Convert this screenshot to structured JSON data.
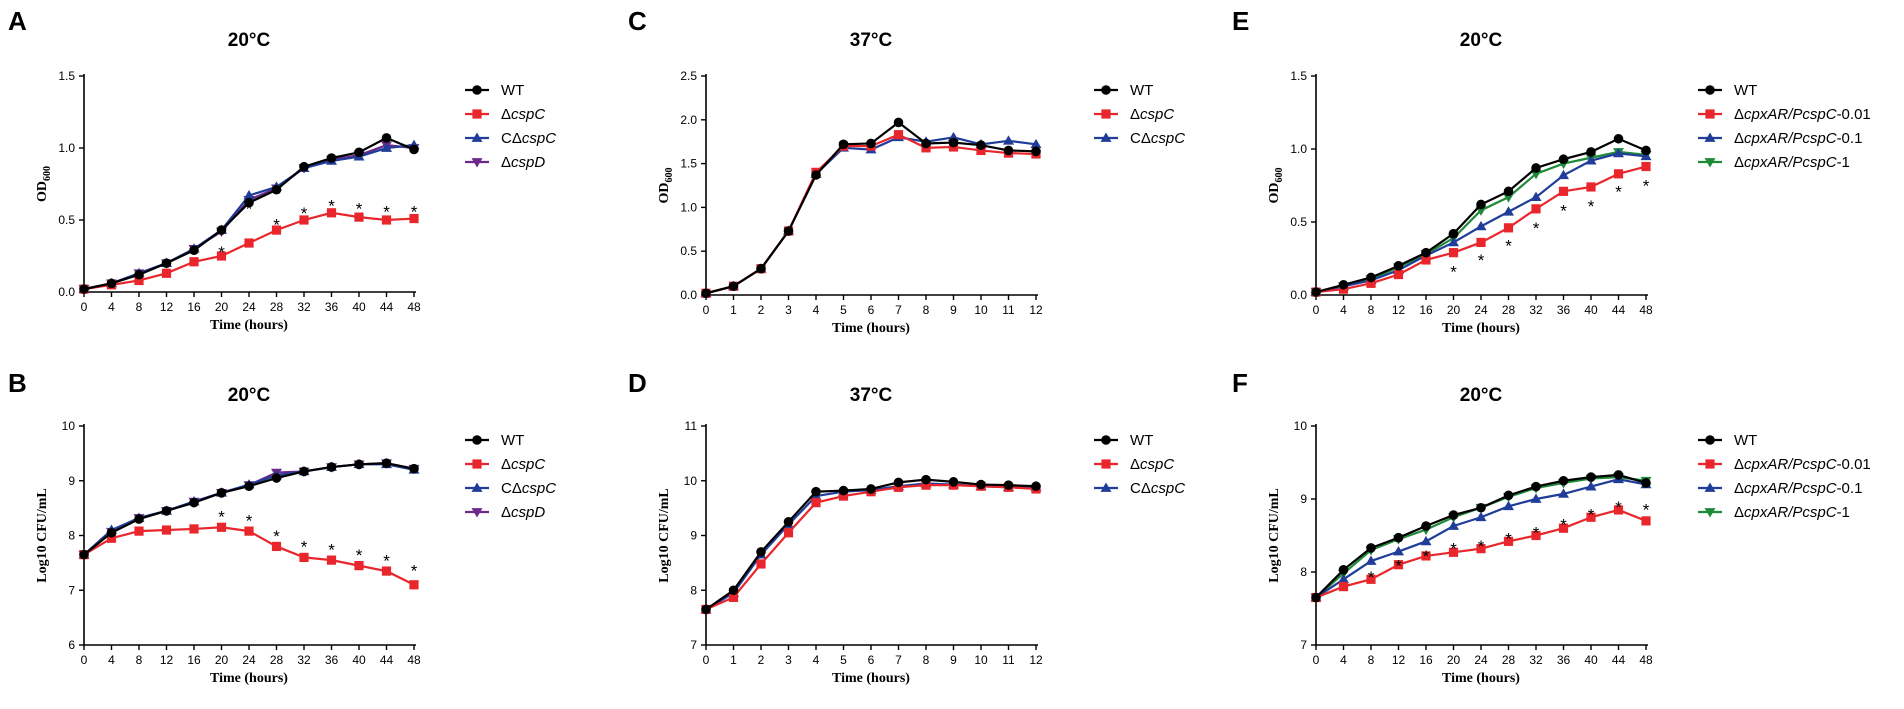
{
  "colors": {
    "WT": "#000000",
    "cspC": "#e8262c",
    "CcspC": "#1f3d99",
    "cspD": "#6b2a8a",
    "cp1": "#1f8a3a"
  },
  "chart_data": [
    {
      "id": "A",
      "letter": "A",
      "title": "20°C",
      "type": "line",
      "xlabel": "Time (hours)",
      "ylabel": "OD",
      "ylabel_sub": "600",
      "x": [
        0,
        4,
        8,
        12,
        16,
        20,
        24,
        28,
        32,
        36,
        40,
        44,
        48
      ],
      "x_ticks": [
        0,
        4,
        8,
        12,
        16,
        20,
        24,
        28,
        32,
        36,
        40,
        44,
        48
      ],
      "xlim": [
        0,
        48
      ],
      "ylim": [
        0,
        1.5
      ],
      "y_ticks": [
        "0.0",
        "0.5",
        "1.0",
        "1.5"
      ],
      "series": [
        {
          "key": "WT",
          "prefix": "",
          "italic": "",
          "suffix": "WT",
          "name": "WT",
          "marker": "circle",
          "values": [
            0.02,
            0.06,
            0.12,
            0.2,
            0.29,
            0.43,
            0.62,
            0.71,
            0.87,
            0.93,
            0.97,
            1.07,
            0.99
          ]
        },
        {
          "key": "cspC",
          "prefix": "Δ",
          "italic": "cspC",
          "suffix": "",
          "name": "ΔcspC",
          "marker": "square",
          "values": [
            0.02,
            0.05,
            0.08,
            0.13,
            0.21,
            0.25,
            0.34,
            0.43,
            0.5,
            0.55,
            0.52,
            0.5,
            0.51
          ]
        },
        {
          "key": "CcspC",
          "prefix": "CΔ",
          "italic": "cspC",
          "suffix": "",
          "name": "CΔcspC",
          "marker": "triangle",
          "values": [
            0.02,
            0.06,
            0.13,
            0.2,
            0.3,
            0.43,
            0.67,
            0.73,
            0.86,
            0.91,
            0.94,
            1.0,
            1.02
          ]
        },
        {
          "key": "cspD",
          "prefix": "Δ",
          "italic": "cspD",
          "suffix": "",
          "name": "ΔcspD",
          "marker": "triangle-down",
          "values": [
            0.02,
            0.06,
            0.13,
            0.2,
            0.3,
            0.42,
            0.64,
            0.72,
            0.86,
            0.92,
            0.95,
            1.02,
            1.0
          ]
        }
      ],
      "stars": [
        {
          "x": 20,
          "y": 0.3
        },
        {
          "x": 24,
          "y": 0.6
        },
        {
          "x": 28,
          "y": 0.49
        },
        {
          "x": 32,
          "y": 0.57
        },
        {
          "x": 36,
          "y": 0.62
        },
        {
          "x": 40,
          "y": 0.6
        },
        {
          "x": 44,
          "y": 0.58
        },
        {
          "x": 48,
          "y": 0.58
        }
      ]
    },
    {
      "id": "B",
      "letter": "B",
      "title": "20°C",
      "type": "line",
      "xlabel": "Time (hours)",
      "ylabel": "Log10 CFU/mL",
      "ylabel_sub": "",
      "x": [
        0,
        4,
        8,
        12,
        16,
        20,
        24,
        28,
        32,
        36,
        40,
        44,
        48
      ],
      "x_ticks": [
        0,
        4,
        8,
        12,
        16,
        20,
        24,
        28,
        32,
        36,
        40,
        44,
        48
      ],
      "xlim": [
        0,
        48
      ],
      "ylim": [
        6,
        10
      ],
      "y_ticks": [
        "6",
        "7",
        "8",
        "9",
        "10"
      ],
      "series": [
        {
          "key": "WT",
          "prefix": "",
          "italic": "",
          "suffix": "WT",
          "name": "WT",
          "marker": "circle",
          "values": [
            7.65,
            8.05,
            8.3,
            8.45,
            8.6,
            8.78,
            8.9,
            9.05,
            9.17,
            9.25,
            9.3,
            9.32,
            9.22
          ]
        },
        {
          "key": "cspC",
          "prefix": "Δ",
          "italic": "cspC",
          "suffix": "",
          "name": "ΔcspC",
          "marker": "square",
          "values": [
            7.65,
            7.95,
            8.08,
            8.1,
            8.12,
            8.15,
            8.08,
            7.8,
            7.6,
            7.55,
            7.45,
            7.35,
            7.1
          ]
        },
        {
          "key": "CcspC",
          "prefix": "CΔ",
          "italic": "cspC",
          "suffix": "",
          "name": "CΔcspC",
          "marker": "triangle",
          "values": [
            7.65,
            8.1,
            8.32,
            8.45,
            8.62,
            8.78,
            8.93,
            9.1,
            9.17,
            9.25,
            9.3,
            9.3,
            9.2
          ]
        },
        {
          "key": "cspD",
          "prefix": "Δ",
          "italic": "cspD",
          "suffix": "",
          "name": "ΔcspD",
          "marker": "triangle-down",
          "values": [
            7.65,
            8.07,
            8.32,
            8.45,
            8.62,
            8.78,
            8.92,
            9.15,
            9.17,
            9.25,
            9.3,
            9.32,
            9.22
          ]
        }
      ],
      "stars": [
        {
          "x": 20,
          "y": 8.4
        },
        {
          "x": 24,
          "y": 8.33
        },
        {
          "x": 28,
          "y": 8.05
        },
        {
          "x": 32,
          "y": 7.85
        },
        {
          "x": 36,
          "y": 7.8
        },
        {
          "x": 40,
          "y": 7.7
        },
        {
          "x": 44,
          "y": 7.6
        },
        {
          "x": 48,
          "y": 7.42
        }
      ]
    },
    {
      "id": "C",
      "letter": "C",
      "title": "37°C",
      "type": "line",
      "xlabel": "Time (hours)",
      "ylabel": "OD",
      "ylabel_sub": "600",
      "x": [
        0,
        1,
        2,
        3,
        4,
        5,
        6,
        7,
        8,
        9,
        10,
        11,
        12
      ],
      "x_ticks": [
        0,
        1,
        2,
        3,
        4,
        5,
        6,
        7,
        8,
        9,
        10,
        11,
        12
      ],
      "xlim": [
        0,
        12
      ],
      "ylim": [
        0,
        2.5
      ],
      "y_ticks": [
        "0.0",
        "0.5",
        "1.0",
        "1.5",
        "2.0",
        "2.5"
      ],
      "series": [
        {
          "key": "WT",
          "prefix": "",
          "italic": "",
          "suffix": "WT",
          "name": "WT",
          "marker": "circle",
          "values": [
            0.02,
            0.1,
            0.3,
            0.73,
            1.37,
            1.72,
            1.73,
            1.97,
            1.73,
            1.74,
            1.71,
            1.65,
            1.64
          ]
        },
        {
          "key": "cspC",
          "prefix": "Δ",
          "italic": "cspC",
          "suffix": "",
          "name": "ΔcspC",
          "marker": "square",
          "values": [
            0.02,
            0.1,
            0.3,
            0.73,
            1.4,
            1.7,
            1.7,
            1.83,
            1.68,
            1.69,
            1.65,
            1.62,
            1.61
          ]
        },
        {
          "key": "CcspC",
          "prefix": "CΔ",
          "italic": "cspC",
          "suffix": "",
          "name": "CΔcspC",
          "marker": "triangle",
          "values": [
            0.02,
            0.1,
            0.3,
            0.73,
            1.38,
            1.68,
            1.66,
            1.8,
            1.75,
            1.8,
            1.72,
            1.76,
            1.72
          ]
        }
      ],
      "stars": []
    },
    {
      "id": "D",
      "letter": "D",
      "title": "37°C",
      "type": "line",
      "xlabel": "Time (hours)",
      "ylabel": "Log10 CFU/mL",
      "ylabel_sub": "",
      "x": [
        0,
        1,
        2,
        3,
        4,
        5,
        6,
        7,
        8,
        9,
        10,
        11,
        12
      ],
      "x_ticks": [
        0,
        1,
        2,
        3,
        4,
        5,
        6,
        7,
        8,
        9,
        10,
        11,
        12
      ],
      "xlim": [
        0,
        12
      ],
      "ylim": [
        7,
        11
      ],
      "y_ticks": [
        "7",
        "8",
        "9",
        "10",
        "11"
      ],
      "series": [
        {
          "key": "WT",
          "prefix": "",
          "italic": "",
          "suffix": "WT",
          "name": "WT",
          "marker": "circle",
          "values": [
            7.65,
            8.0,
            8.7,
            9.25,
            9.8,
            9.82,
            9.85,
            9.97,
            10.02,
            9.98,
            9.93,
            9.92,
            9.9
          ]
        },
        {
          "key": "cspC",
          "prefix": "Δ",
          "italic": "cspC",
          "suffix": "",
          "name": "ΔcspC",
          "marker": "square",
          "values": [
            7.65,
            7.87,
            8.48,
            9.05,
            9.6,
            9.72,
            9.8,
            9.88,
            9.92,
            9.92,
            9.9,
            9.88,
            9.85
          ]
        },
        {
          "key": "CcspC",
          "prefix": "CΔ",
          "italic": "cspC",
          "suffix": "",
          "name": "CΔcspC",
          "marker": "triangle",
          "values": [
            7.65,
            7.95,
            8.65,
            9.2,
            9.72,
            9.8,
            9.83,
            9.9,
            9.95,
            9.93,
            9.9,
            9.88,
            9.88
          ]
        }
      ],
      "stars": []
    },
    {
      "id": "E",
      "letter": "E",
      "title": "20°C",
      "type": "line",
      "xlabel": "Time (hours)",
      "ylabel": "OD",
      "ylabel_sub": "600",
      "x": [
        0,
        4,
        8,
        12,
        16,
        20,
        24,
        28,
        32,
        36,
        40,
        44,
        48
      ],
      "x_ticks": [
        0,
        4,
        8,
        12,
        16,
        20,
        24,
        28,
        32,
        36,
        40,
        44,
        48
      ],
      "xlim": [
        0,
        48
      ],
      "ylim": [
        0,
        1.5
      ],
      "y_ticks": [
        "0.0",
        "0.5",
        "1.0",
        "1.5"
      ],
      "series": [
        {
          "key": "WT",
          "prefix": "",
          "italic": "",
          "suffix": "WT",
          "name": "WT",
          "marker": "circle",
          "values": [
            0.02,
            0.07,
            0.12,
            0.2,
            0.29,
            0.42,
            0.62,
            0.71,
            0.87,
            0.93,
            0.98,
            1.07,
            0.99
          ]
        },
        {
          "key": "cspC",
          "prefix": "Δ",
          "italic": "cpxAR/PcspC",
          "suffix": "-0.01",
          "name": "ΔcpxAR/PcspC-0.01",
          "marker": "square",
          "values": [
            0.02,
            0.04,
            0.08,
            0.14,
            0.24,
            0.29,
            0.36,
            0.46,
            0.59,
            0.71,
            0.74,
            0.83,
            0.88
          ]
        },
        {
          "key": "CcspC",
          "prefix": "Δ",
          "italic": "cpxAR/PcspC",
          "suffix": "-0.1",
          "name": "ΔcpxAR/PcspC-0.1",
          "marker": "triangle",
          "values": [
            0.02,
            0.06,
            0.1,
            0.17,
            0.27,
            0.36,
            0.47,
            0.57,
            0.67,
            0.82,
            0.92,
            0.97,
            0.95
          ]
        },
        {
          "key": "cp1",
          "prefix": "Δ",
          "italic": "cpxAR/PcspC",
          "suffix": "-1",
          "name": "ΔcpxAR/PcspC-1",
          "marker": "triangle-down",
          "values": [
            0.02,
            0.06,
            0.11,
            0.19,
            0.28,
            0.39,
            0.58,
            0.67,
            0.83,
            0.9,
            0.94,
            0.98,
            0.96
          ]
        }
      ],
      "stars": [
        {
          "x": 20,
          "y": 0.18
        },
        {
          "x": 24,
          "y": 0.26
        },
        {
          "x": 28,
          "y": 0.36
        },
        {
          "x": 32,
          "y": 0.48
        },
        {
          "x": 36,
          "y": 0.6
        },
        {
          "x": 40,
          "y": 0.63
        },
        {
          "x": 44,
          "y": 0.73
        },
        {
          "x": 48,
          "y": 0.77
        }
      ]
    },
    {
      "id": "F",
      "letter": "F",
      "title": "20°C",
      "type": "line",
      "xlabel": "Time (hours)",
      "ylabel": "Log10 CFU/mL",
      "ylabel_sub": "",
      "x": [
        0,
        4,
        8,
        12,
        16,
        20,
        24,
        28,
        32,
        36,
        40,
        44,
        48
      ],
      "x_ticks": [
        0,
        4,
        8,
        12,
        16,
        20,
        24,
        28,
        32,
        36,
        40,
        44,
        48
      ],
      "xlim": [
        0,
        48
      ],
      "ylim": [
        7,
        10
      ],
      "y_ticks": [
        "7",
        "8",
        "9",
        "10"
      ],
      "series": [
        {
          "key": "WT",
          "prefix": "",
          "italic": "",
          "suffix": "WT",
          "name": "WT",
          "marker": "circle",
          "values": [
            7.65,
            8.03,
            8.33,
            8.47,
            8.63,
            8.78,
            8.88,
            9.05,
            9.17,
            9.25,
            9.3,
            9.33,
            9.22
          ]
        },
        {
          "key": "cspC",
          "prefix": "Δ",
          "italic": "cpxAR/PcspC",
          "suffix": "-0.01",
          "name": "ΔcpxAR/PcspC-0.01",
          "marker": "square",
          "values": [
            7.65,
            7.8,
            7.9,
            8.1,
            8.22,
            8.27,
            8.32,
            8.42,
            8.5,
            8.6,
            8.75,
            8.85,
            8.7
          ]
        },
        {
          "key": "CcspC",
          "prefix": "Δ",
          "italic": "cpxAR/PcspC",
          "suffix": "-0.1",
          "name": "ΔcpxAR/PcspC-0.1",
          "marker": "triangle",
          "values": [
            7.65,
            7.9,
            8.15,
            8.28,
            8.42,
            8.63,
            8.75,
            8.9,
            9.0,
            9.07,
            9.17,
            9.27,
            9.2
          ]
        },
        {
          "key": "cp1",
          "prefix": "Δ",
          "italic": "cpxAR/PcspC",
          "suffix": "-1",
          "name": "ΔcpxAR/PcspC-1",
          "marker": "triangle-down",
          "values": [
            7.65,
            7.98,
            8.3,
            8.45,
            8.58,
            8.75,
            8.88,
            9.03,
            9.15,
            9.22,
            9.28,
            9.3,
            9.25
          ]
        }
      ],
      "stars": [
        {
          "x": 8,
          "y": 7.97
        },
        {
          "x": 12,
          "y": 8.13
        },
        {
          "x": 16,
          "y": 8.26
        },
        {
          "x": 20,
          "y": 8.36
        },
        {
          "x": 24,
          "y": 8.4
        },
        {
          "x": 28,
          "y": 8.5
        },
        {
          "x": 32,
          "y": 8.58
        },
        {
          "x": 36,
          "y": 8.69
        },
        {
          "x": 40,
          "y": 8.83
        },
        {
          "x": 44,
          "y": 8.93
        },
        {
          "x": 48,
          "y": 8.9
        }
      ]
    }
  ]
}
